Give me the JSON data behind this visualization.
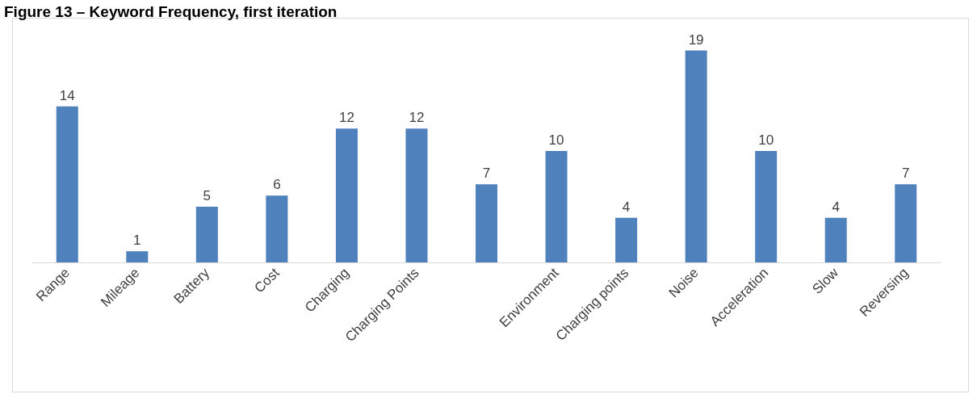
{
  "chart_data": {
    "type": "bar",
    "title": "Figure 13 – Keyword Frequency, first iteration",
    "categories": [
      "Range",
      "Mileage",
      "Battery",
      "Cost",
      "Charging",
      "Charging Points",
      null,
      "Environment",
      "Charging points",
      "Noise",
      "Acceleration",
      "Slow",
      "Reversing"
    ],
    "values": [
      14,
      1,
      5,
      6,
      12,
      12,
      7,
      10,
      4,
      19,
      10,
      4,
      7
    ],
    "color": "#4f81bd",
    "data_labels": true
  }
}
